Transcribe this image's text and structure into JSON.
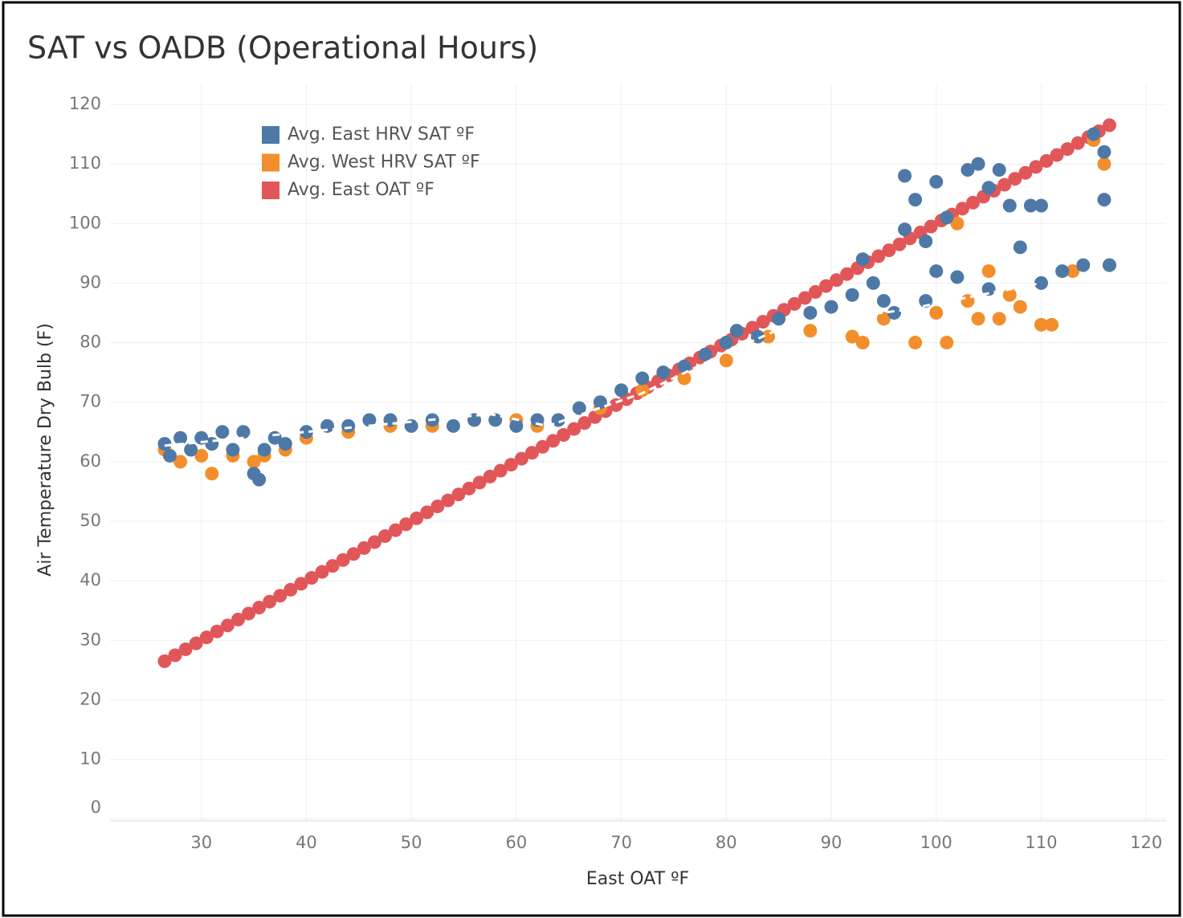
{
  "chart_data": {
    "type": "scatter",
    "title": "SAT vs OADB (Operational Hours)",
    "x_label": "East OAT ºF",
    "y_label": "Air Temperature Dry Bulb (F)",
    "xlim": [
      21.3,
      121.9
    ],
    "ylim": [
      -0.3,
      123.5
    ],
    "xticks": [
      30,
      40,
      50,
      60,
      70,
      80,
      90,
      100,
      110,
      120
    ],
    "yticks": [
      0,
      10,
      20,
      30,
      40,
      50,
      60,
      70,
      80,
      90,
      100,
      110,
      120
    ],
    "grid": true,
    "legend": "top-left",
    "series": [
      {
        "name": "Avg. East OAT ºF",
        "color": "#e15759",
        "x": [
          26.5,
          27.5,
          28.5,
          29.5,
          30.5,
          31.5,
          32.5,
          33.5,
          34.5,
          35.5,
          36.5,
          37.5,
          38.5,
          39.5,
          40.5,
          41.5,
          42.5,
          43.5,
          44.5,
          45.5,
          46.5,
          47.5,
          48.5,
          49.5,
          50.5,
          51.5,
          52.5,
          53.5,
          54.5,
          55.5,
          56.5,
          57.5,
          58.5,
          59.5,
          60.5,
          61.5,
          62.5,
          63.5,
          64.5,
          65.5,
          66.5,
          67.5,
          68.5,
          69.5,
          70.5,
          71.5,
          72.5,
          73.5,
          74.5,
          75.5,
          76.5,
          77.5,
          78.5,
          79.5,
          80.5,
          81.5,
          82.5,
          83.5,
          84.5,
          85.5,
          86.5,
          87.5,
          88.5,
          89.5,
          90.5,
          91.5,
          92.5,
          93.5,
          94.5,
          95.5,
          96.5,
          97.5,
          98.5,
          99.5,
          100.5,
          101.5,
          102.5,
          103.5,
          104.5,
          105.5,
          106.5,
          107.5,
          108.5,
          109.5,
          110.5,
          111.5,
          112.5,
          113.5,
          114.5,
          115.5,
          116.5
        ],
        "values": [
          26.5,
          27.5,
          28.5,
          29.5,
          30.5,
          31.5,
          32.5,
          33.5,
          34.5,
          35.5,
          36.5,
          37.5,
          38.5,
          39.5,
          40.5,
          41.5,
          42.5,
          43.5,
          44.5,
          45.5,
          46.5,
          47.5,
          48.5,
          49.5,
          50.5,
          51.5,
          52.5,
          53.5,
          54.5,
          55.5,
          56.5,
          57.5,
          58.5,
          59.5,
          60.5,
          61.5,
          62.5,
          63.5,
          64.5,
          65.5,
          66.5,
          67.5,
          68.5,
          69.5,
          70.5,
          71.5,
          72.5,
          73.5,
          74.5,
          75.5,
          76.5,
          77.5,
          78.5,
          79.5,
          80.5,
          81.5,
          82.5,
          83.5,
          84.5,
          85.5,
          86.5,
          87.5,
          88.5,
          89.5,
          90.5,
          91.5,
          92.5,
          93.5,
          94.5,
          95.5,
          96.5,
          97.5,
          98.5,
          99.5,
          100.5,
          101.5,
          102.5,
          103.5,
          104.5,
          105.5,
          106.5,
          107.5,
          108.5,
          109.5,
          110.5,
          111.5,
          112.5,
          113.5,
          114.5,
          115.5,
          116.5
        ]
      },
      {
        "name": "Avg. West HRV SAT ºF",
        "color": "#f28e2b",
        "x": [
          26.5,
          28,
          30,
          31,
          33,
          35,
          36,
          38,
          40,
          44,
          48,
          52,
          56,
          60,
          62,
          64,
          68,
          72,
          76,
          80,
          84,
          88,
          92,
          93,
          95,
          98,
          100,
          101,
          102,
          103,
          104,
          105,
          106,
          107,
          108,
          110,
          111,
          113,
          115,
          116,
          116.5
        ],
        "values": [
          62,
          60,
          61,
          58,
          61,
          60,
          61,
          62,
          64,
          65,
          66,
          66,
          67,
          67,
          66,
          67,
          69,
          72,
          74,
          77,
          81,
          82,
          81,
          80,
          84,
          80,
          85,
          80,
          100,
          87,
          84,
          92,
          84,
          88,
          86,
          83,
          83,
          92,
          114,
          110,
          93
        ]
      },
      {
        "name": "Avg. East HRV SAT ºF",
        "color": "#4e79a7",
        "x": [
          26.5,
          27,
          28,
          29,
          30,
          31,
          32,
          33,
          34,
          35,
          35.5,
          36,
          37,
          38,
          40,
          42,
          44,
          46,
          48,
          50,
          52,
          54,
          56,
          58,
          60,
          62,
          64,
          66,
          68,
          70,
          72,
          74,
          76,
          78,
          80,
          81,
          83,
          85,
          88,
          90,
          92,
          93,
          94,
          95,
          96,
          97,
          97,
          98,
          99,
          100,
          100,
          101,
          102,
          103,
          104,
          105,
          106,
          107,
          108,
          109,
          110,
          112,
          114,
          115,
          116,
          116,
          116.5,
          99,
          105,
          110
        ],
        "values": [
          63,
          61,
          64,
          62,
          64,
          63,
          65,
          62,
          65,
          58,
          57,
          62,
          64,
          63,
          65,
          66,
          66,
          67,
          67,
          66,
          67,
          66,
          67,
          67,
          66,
          67,
          67,
          69,
          70,
          72,
          74,
          75,
          76,
          78,
          80,
          82,
          81,
          84,
          85,
          86,
          88,
          94,
          90,
          87,
          85,
          108,
          99,
          104,
          97,
          107,
          92,
          101,
          91,
          109,
          110,
          106,
          109,
          103,
          96,
          103,
          103,
          92,
          93,
          115,
          112,
          104,
          93,
          87,
          89,
          90
        ]
      }
    ],
    "trend_line": {
      "color": "#ffffff",
      "x": [
        26.5,
        57.5,
        63,
        72,
        80,
        86,
        97,
        110
      ],
      "values": [
        62.7,
        68,
        66,
        71.5,
        78.3,
        83,
        85.5,
        90
      ]
    }
  }
}
